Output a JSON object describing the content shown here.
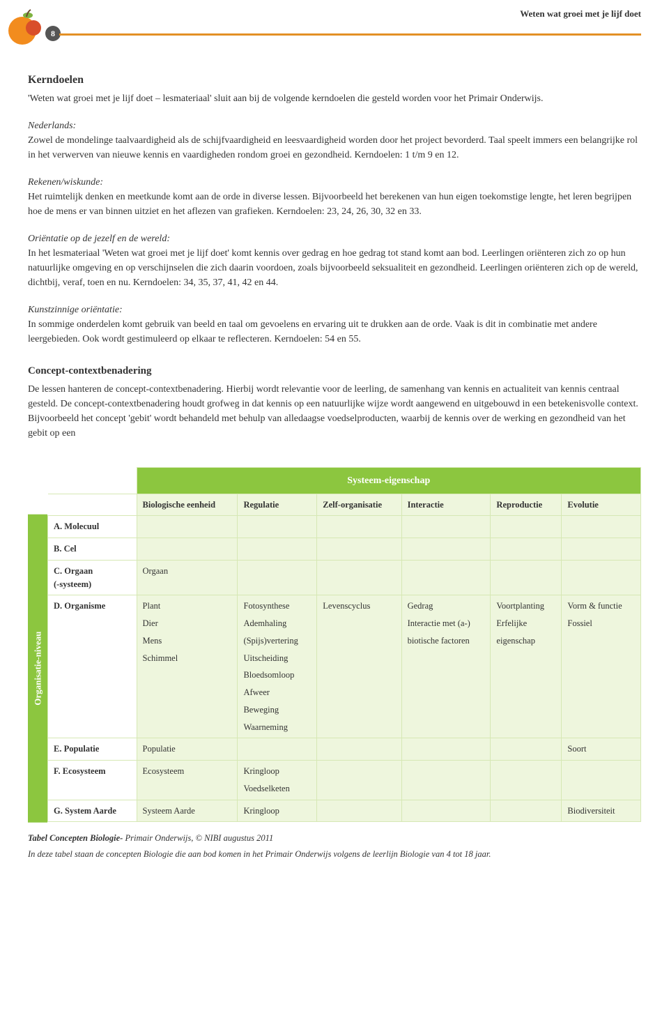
{
  "header": {
    "page_number": "8",
    "running_title": "Weten wat groei met je lijf doet"
  },
  "sections": {
    "kerndoelen": {
      "title": "Kerndoelen",
      "intro": "'Weten wat groei met je lijf doet – lesmateriaal' sluit aan bij de volgende kerndoelen die gesteld worden voor het Primair Onderwijs.",
      "nederlands_label": "Nederlands:",
      "nederlands_text": "Zowel de mondelinge taalvaardigheid als de schijfvaardigheid en leesvaardigheid worden door het project bevorderd. Taal speelt immers een belangrijke rol in het verwerven van nieuwe kennis en vaardigheden rondom groei en gezondheid. Kerndoelen: 1 t/m 9 en 12.",
      "rekenen_label": "Rekenen/wiskunde:",
      "rekenen_text": "Het ruimtelijk denken en meetkunde komt aan de orde in diverse lessen. Bijvoorbeeld het berekenen van hun eigen toekomstige lengte, het leren begrijpen hoe de mens er van binnen uitziet en het aflezen van grafieken. Kerndoelen: 23, 24, 26, 30, 32 en 33.",
      "orientatie_label": "Oriëntatie op de jezelf en de wereld:",
      "orientatie_text": "In het lesmateriaal 'Weten wat groei met je lijf doet' komt kennis over gedrag en hoe gedrag tot stand komt aan bod. Leerlingen oriënteren zich zo op hun natuurlijke omgeving en op verschijnselen die zich daarin voordoen, zoals bijvoorbeeld seksualiteit en gezondheid. Leerlingen oriënteren zich op de wereld, dichtbij, veraf, toen en nu. Kerndoelen: 34, 35, 37, 41, 42 en 44.",
      "kunst_label": "Kunstzinnige oriëntatie:",
      "kunst_text": "In sommige onderdelen komt gebruik van beeld en taal om gevoelens en ervaring uit te drukken aan de orde. Vaak is dit in combinatie met andere leergebieden. Ook wordt gestimuleerd op elkaar te reflecteren. Kerndoelen: 54 en 55."
    },
    "concept": {
      "title": "Concept-contextbenadering",
      "text": "De lessen hanteren de concept-contextbenadering. Hierbij wordt relevantie voor de leerling, de samenhang van kennis en actualiteit van kennis centraal gesteld. De concept-contextbenadering houdt grofweg in dat kennis op een natuurlijke wijze wordt aangewend en uitgebouwd in een betekenisvolle context. Bijvoorbeeld het concept 'gebit' wordt behandeld met behulp van alledaagse voedselproducten, waarbij de kennis over de werking en gezondheid van het gebit op een"
    }
  },
  "table": {
    "side_label": "Organisatie-niveau",
    "spanner": "Systeem-eigenschap",
    "columns": [
      "Biologische eenheid",
      "Regulatie",
      "Zelf-organisatie",
      "Interactie",
      "Reproductie",
      "Evolutie"
    ],
    "rows": [
      {
        "head": "A. Molecuul",
        "cells": [
          "",
          "",
          "",
          "",
          "",
          ""
        ]
      },
      {
        "head": "B. Cel",
        "cells": [
          "",
          "",
          "",
          "",
          "",
          ""
        ]
      },
      {
        "head": "C. Orgaan\n(-systeem)",
        "cells": [
          "Orgaan",
          "",
          "",
          "",
          "",
          ""
        ]
      },
      {
        "head": "D. Organisme",
        "cells": [
          "Plant\nDier\nMens\nSchimmel",
          "Fotosynthese\nAdemhaling\n(Spijs)vertering\nUitscheiding\nBloedsomloop\nAfweer\nBeweging\nWaarneming",
          "Levenscyclus",
          "Gedrag\nInteractie met (a-)\nbiotische factoren",
          "Voortplanting\nErfelijke\neigenschap",
          "Vorm & functie\nFossiel"
        ]
      },
      {
        "head": "E. Populatie",
        "cells": [
          "Populatie",
          "",
          "",
          "",
          "",
          "Soort"
        ]
      },
      {
        "head": "F. Ecosysteem",
        "cells": [
          "Ecosysteem",
          "Kringloop\nVoedselketen",
          "",
          "",
          "",
          ""
        ]
      },
      {
        "head": "G. System Aarde",
        "cells": [
          "Systeem Aarde",
          "Kringloop",
          "",
          "",
          "",
          "Biodiversiteit"
        ]
      }
    ]
  },
  "caption": {
    "line1_bold": "Tabel Concepten Biologie-",
    "line1_rest": " Primair Onderwijs, © NIBI augustus 2011",
    "line2": "In deze tabel staan de concepten Biologie die aan bod komen in het Primair Onderwijs volgens de leerlijn Biologie van 4 tot 18 jaar."
  },
  "colors": {
    "accent_orange": "#e39025",
    "accent_green": "#8cc63f",
    "table_bg": "#eef6dd",
    "table_border": "#d6e8b4",
    "badge_bg": "#555555",
    "text": "#333333"
  }
}
